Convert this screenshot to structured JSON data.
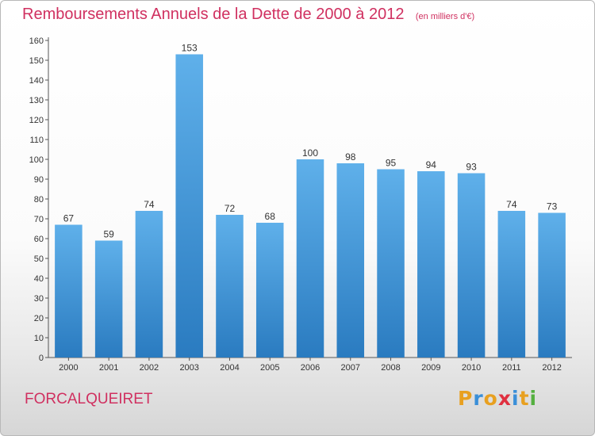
{
  "header": {
    "title": "Remboursements Annuels de la Dette de 2000 à 2012",
    "unit": "(en milliers d'€)"
  },
  "footer": {
    "commune": "FORCALQUEIRET",
    "logo_letters": [
      "P",
      "r",
      "o",
      "x",
      "i",
      "t",
      "i"
    ],
    "logo_colors": [
      "#e8a020",
      "#3a8fd8",
      "#e8a020",
      "#e03040",
      "#3a8fd8",
      "#e8a020",
      "#55b040"
    ]
  },
  "colors": {
    "accent": "#d03060",
    "bar_light": "#5fb0ea",
    "bar_dark": "#2a7bc0"
  },
  "chart_data": {
    "type": "bar",
    "categories": [
      "2000",
      "2001",
      "2002",
      "2003",
      "2004",
      "2005",
      "2006",
      "2007",
      "2008",
      "2009",
      "2010",
      "2011",
      "2012"
    ],
    "values": [
      67,
      59,
      74,
      153,
      72,
      68,
      100,
      98,
      95,
      94,
      93,
      74,
      73
    ],
    "ylim": [
      0,
      160
    ],
    "yticks": [
      0,
      10,
      20,
      30,
      40,
      50,
      60,
      70,
      80,
      90,
      100,
      110,
      120,
      130,
      140,
      150,
      160
    ],
    "grid": false,
    "data_labels": true
  }
}
